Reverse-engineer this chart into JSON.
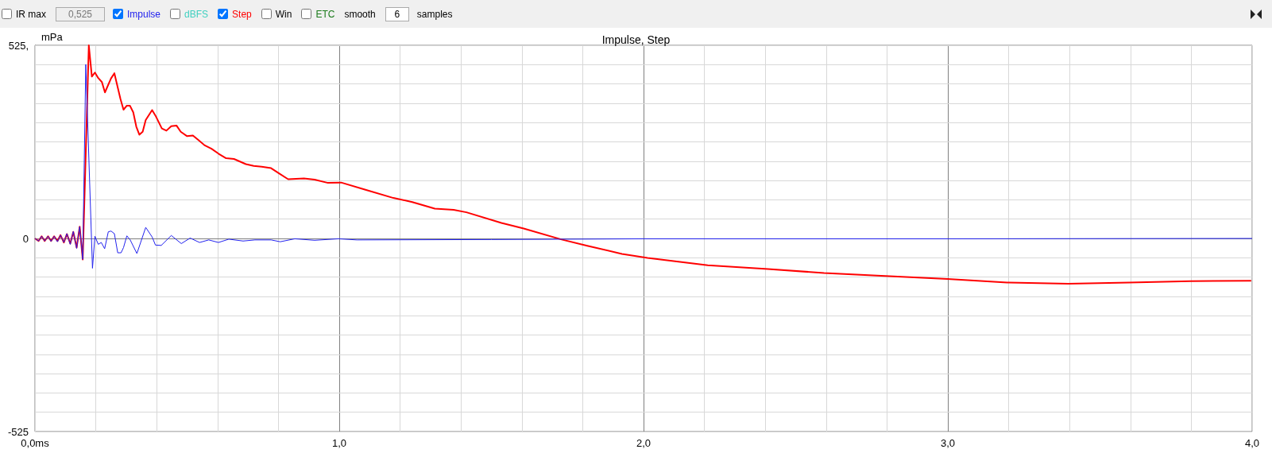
{
  "chart_data": {
    "type": "line",
    "title": "Impulse, Step",
    "ylabel": "mPa",
    "annotations": [
      "IR max",
      "0,525",
      "dBFS",
      "Win",
      "ETC",
      "smooth",
      "6",
      "samples"
    ],
    "legend": "top left",
    "grid": true,
    "marker": "none",
    "line_style": "solid",
    "xlim": [
      0,
      4
    ],
    "ylim": [
      -525,
      525
    ],
    "xticks": [
      {
        "value": 0,
        "label": "0,0ms"
      },
      {
        "value": 0.2,
        "label": null
      },
      {
        "value": 0.4,
        "label": null
      },
      {
        "value": 0.6,
        "label": null
      },
      {
        "value": 0.8,
        "label": null
      },
      {
        "value": 1,
        "label": "1,0"
      },
      {
        "value": 1.2,
        "label": null
      },
      {
        "value": 1.4,
        "label": null
      },
      {
        "value": 1.6,
        "label": null
      },
      {
        "value": 1.8,
        "label": null
      },
      {
        "value": 2,
        "label": "2,0"
      },
      {
        "value": 2.2,
        "label": null
      },
      {
        "value": 2.4,
        "label": null
      },
      {
        "value": 2.6,
        "label": null
      },
      {
        "value": 2.8,
        "label": null
      },
      {
        "value": 3,
        "label": "3,0"
      },
      {
        "value": 3.2,
        "label": null
      },
      {
        "value": 3.4,
        "label": null
      },
      {
        "value": 3.6,
        "label": null
      },
      {
        "value": 3.8,
        "label": null
      },
      {
        "value": 4,
        "label": "4,0"
      }
    ],
    "yticks": [
      -525,
      {
        "value": -472.5,
        "label": null
      },
      {
        "value": -420,
        "label": null
      },
      {
        "value": -367.5,
        "label": null
      },
      {
        "value": -315,
        "label": null
      },
      {
        "value": -262.5,
        "label": null
      },
      {
        "value": -210,
        "label": null
      },
      {
        "value": -157.5,
        "label": null
      },
      {
        "value": -105,
        "label": null
      },
      {
        "value": -52.5,
        "label": null
      },
      0,
      {
        "value": 52.5,
        "label": null
      },
      {
        "value": 105,
        "label": null
      },
      {
        "value": 157.5,
        "label": null
      },
      {
        "value": 210,
        "label": null
      },
      {
        "value": 262.5,
        "label": null
      },
      {
        "value": 315,
        "label": null
      },
      {
        "value": 367.5,
        "label": null
      },
      {
        "value": 420,
        "label": null
      },
      {
        "value": 472.5,
        "label": null
      },
      {
        "value": 525,
        "label": "525,"
      }
    ],
    "series": [
      {
        "name": "Impulse",
        "color": "#2222ee",
        "x": [
          0,
          0.012,
          0.022,
          0.032,
          0.043,
          0.053,
          0.063,
          0.074,
          0.084,
          0.095,
          0.105,
          0.116,
          0.126,
          0.137,
          0.147,
          0.157,
          0.167,
          0.189,
          0.197,
          0.208,
          0.218,
          0.229,
          0.241,
          0.25,
          0.261,
          0.272,
          0.283,
          0.291,
          0.302,
          0.313,
          0.335,
          0.364,
          0.385,
          0.396,
          0.415,
          0.448,
          0.481,
          0.51,
          0.541,
          0.571,
          0.603,
          0.637,
          0.684,
          0.723,
          0.776,
          0.806,
          0.854,
          0.919,
          0.997,
          1.058,
          1.5,
          2.0,
          3.0,
          4.0
        ],
        "values": [
          0,
          -7,
          6,
          -7,
          6,
          -8,
          6,
          -9,
          9,
          -11,
          13,
          -16,
          19,
          -27,
          32,
          -57,
          473,
          -81,
          6,
          -16,
          -11,
          -28,
          18,
          20,
          13,
          -39,
          -39,
          -25,
          7,
          -4,
          -41,
          30,
          4,
          -18,
          -19,
          8,
          -14,
          1,
          -11,
          -4,
          -11,
          -2,
          -7,
          -4,
          -4,
          -9,
          -1,
          -5,
          -1,
          -4,
          -3,
          -1,
          -1,
          0
        ]
      },
      {
        "name": "Step",
        "color": "#ff0000",
        "x": [
          0,
          0.012,
          0.022,
          0.032,
          0.043,
          0.053,
          0.063,
          0.074,
          0.084,
          0.095,
          0.105,
          0.116,
          0.126,
          0.137,
          0.147,
          0.157,
          0.177,
          0.187,
          0.197,
          0.208,
          0.22,
          0.23,
          0.25,
          0.261,
          0.281,
          0.291,
          0.302,
          0.312,
          0.323,
          0.333,
          0.343,
          0.354,
          0.364,
          0.385,
          0.396,
          0.417,
          0.432,
          0.448,
          0.465,
          0.479,
          0.5,
          0.519,
          0.535,
          0.558,
          0.58,
          0.604,
          0.628,
          0.654,
          0.693,
          0.719,
          0.745,
          0.776,
          0.802,
          0.832,
          0.884,
          0.919,
          0.963,
          1.006,
          1.084,
          1.178,
          1.24,
          1.314,
          1.376,
          1.418,
          1.533,
          1.606,
          1.731,
          1.815,
          1.929,
          2.013,
          2.211,
          2.409,
          2.593,
          2.794,
          2.999,
          3.195,
          3.396,
          3.596,
          3.797,
          3.997
        ],
        "values": [
          0,
          -7,
          6,
          -7,
          6,
          -7,
          6,
          -7,
          9,
          -11,
          12,
          -14,
          18,
          -25,
          32,
          -57,
          525,
          440,
          451,
          436,
          425,
          397,
          435,
          449,
          379,
          350,
          361,
          361,
          343,
          304,
          282,
          290,
          322,
          349,
          334,
          299,
          293,
          305,
          307,
          290,
          278,
          280,
          269,
          253,
          244,
          230,
          218,
          216,
          202,
          197,
          195,
          191,
          177,
          161,
          163,
          160,
          151,
          152,
          133,
          110,
          99,
          81,
          78,
          71,
          42,
          27,
          -3,
          -20,
          -42,
          -53,
          -73,
          -83,
          -94,
          -102,
          -110,
          -120,
          -123,
          -120,
          -116,
          -115
        ]
      }
    ]
  }
}
